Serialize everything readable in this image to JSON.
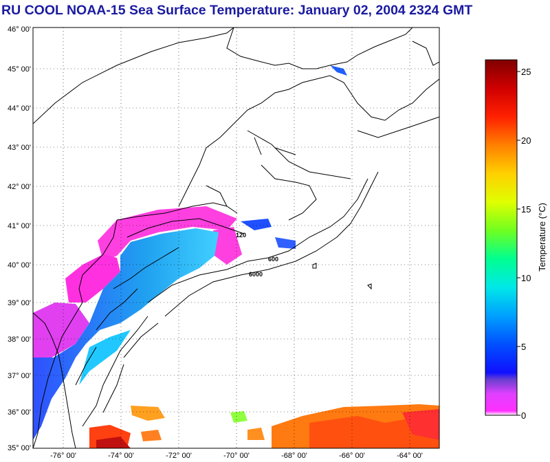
{
  "title": "RU COOL  NOAA-15  Sea Surface Temperature:  January 02, 2004 2324 GMT",
  "map": {
    "lat_labels": [
      "46° 00'",
      "45° 00'",
      "44° 00'",
      "43° 00'",
      "42° 00'",
      "41° 00'",
      "40° 00'",
      "39° 00'",
      "38° 00'",
      "37° 00'",
      "36° 00'",
      "35° 00'"
    ],
    "lon_labels": [
      "-76° 00'",
      "-74° 00'",
      "-72° 00'",
      "-70° 00'",
      "-68° 00'",
      "-66° 00'",
      "-64° 00'"
    ],
    "lat_range": [
      35,
      46
    ],
    "lon_range": [
      -77,
      -63
    ],
    "isobath_labels": [
      "120",
      "600",
      "6000"
    ]
  },
  "colorbar": {
    "label": "Temperature (°C)",
    "ticks": [
      "0",
      "5",
      "10",
      "15",
      "20",
      "25"
    ],
    "range": [
      0,
      26
    ],
    "colors": [
      "#ffffff",
      "#ff00ff",
      "#c040ff",
      "#3030ff",
      "#0000ff",
      "#0080ff",
      "#00e0ff",
      "#00ff80",
      "#c0ff00",
      "#ffff00",
      "#ffa000",
      "#ff4000",
      "#ff0000",
      "#a00000",
      "#600000"
    ]
  }
}
